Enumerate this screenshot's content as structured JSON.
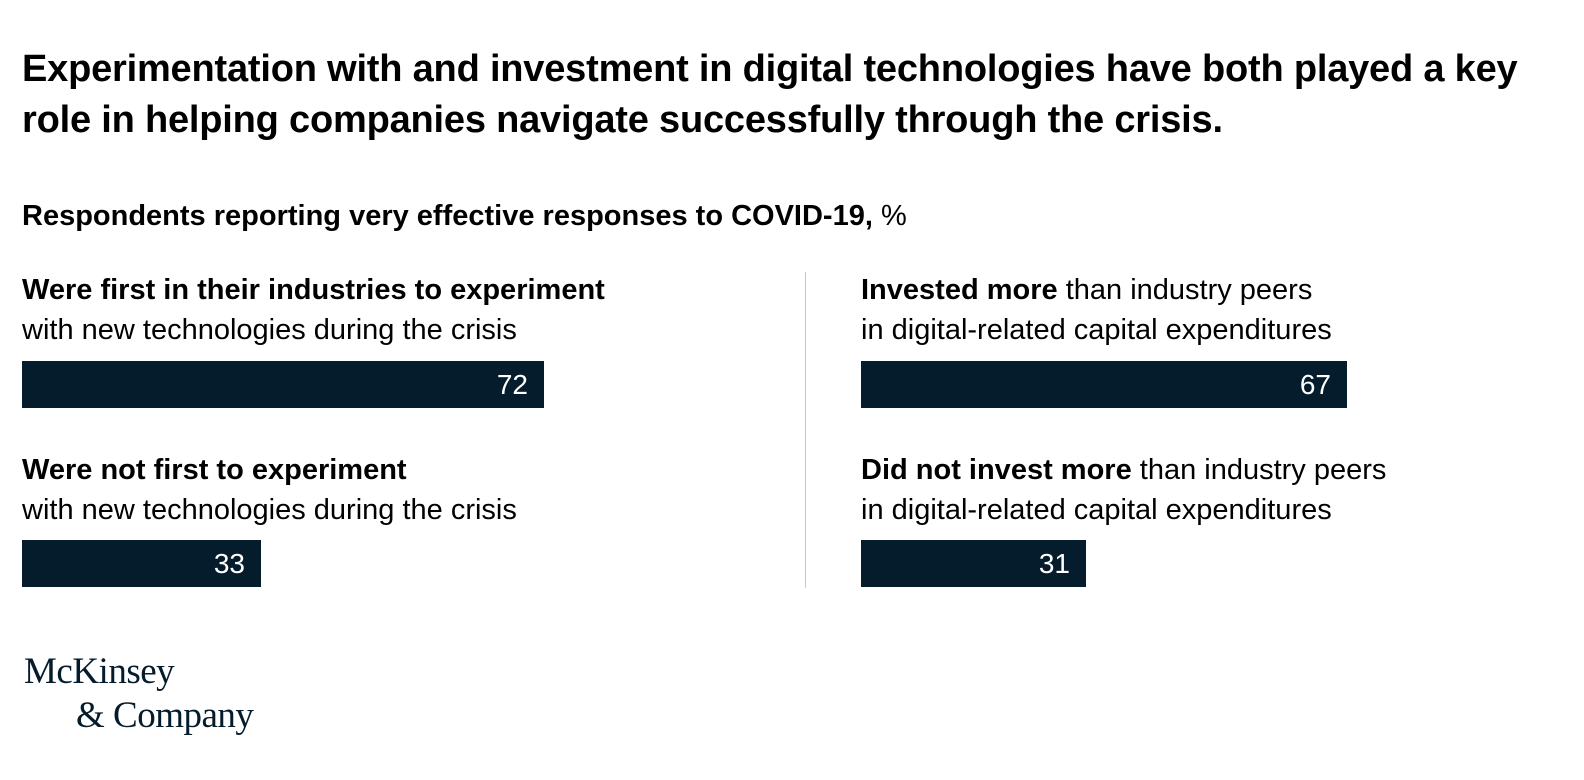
{
  "title": "Experimentation with and investment in digital technologies have both played a key role in helping companies navigate successfully through the crisis.",
  "subtitle_bold": "Respondents reporting very effective responses to COVID-19,",
  "subtitle_unit": " %",
  "left": [
    {
      "label_bold": "Were first in their industries to experiment",
      "label_rest_line2": "with new technologies during the crisis",
      "value_text": "72"
    },
    {
      "label_bold": "Were not first to experiment",
      "label_rest_line2": "with new technologies during the crisis",
      "value_text": "33"
    }
  ],
  "right": [
    {
      "label_bold": "Invested more",
      "label_rest_line1": " than industry peers",
      "label_rest_line2": "in digital-related capital expenditures",
      "value_text": "67"
    },
    {
      "label_bold": "Did not invest more",
      "label_rest_line1": " than industry peers",
      "label_rest_line2": "in digital-related capital expenditures",
      "value_text": "31"
    }
  ],
  "logo": {
    "line1": "McKinsey",
    "line2": "& Company"
  },
  "chart_data": [
    {
      "type": "bar",
      "categories": [
        "Were first in their industries to experiment with new technologies during the crisis",
        "Were not first to experiment with new technologies during the crisis"
      ],
      "values": [
        72,
        33
      ],
      "ylabel": "%"
    },
    {
      "type": "bar",
      "categories": [
        "Invested more than industry peers in digital-related capital expenditures",
        "Did not invest more than industry peers in digital-related capital expenditures"
      ],
      "values": [
        67,
        31
      ],
      "ylabel": "%"
    }
  ],
  "colors": {
    "bar": "#051c2c",
    "bar_text": "#ffffff",
    "divider": "#c8c8c8"
  }
}
